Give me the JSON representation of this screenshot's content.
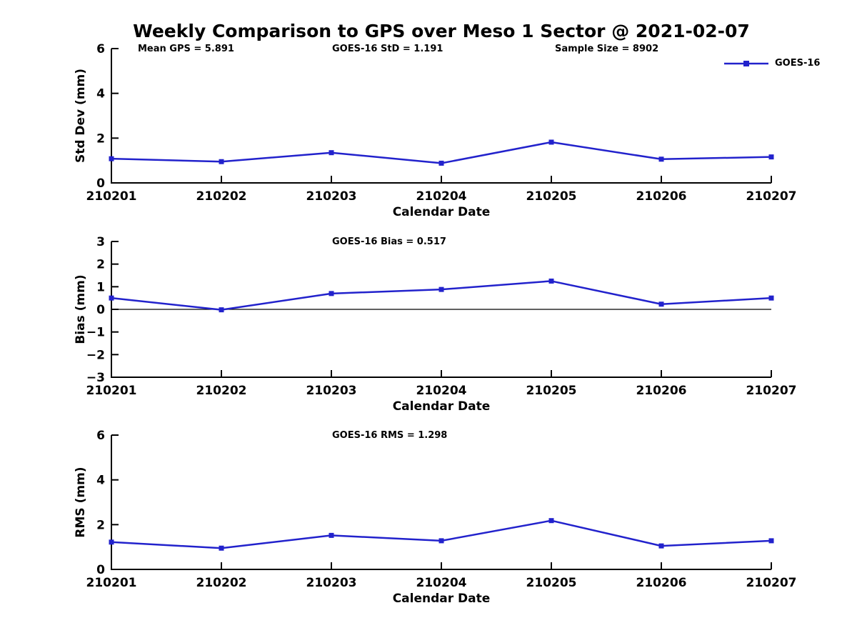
{
  "figure": {
    "title": "Weekly Comparison to GPS over Meso 1 Sector @ 2021-02-07",
    "background": "#ffffff",
    "text_color": "#000000"
  },
  "legend": {
    "label": "GOES-16",
    "color": "#2222cc",
    "marker": "square"
  },
  "chart_data": [
    {
      "type": "line",
      "categories": [
        "210201",
        "210202",
        "210203",
        "210204",
        "210205",
        "210206",
        "210207"
      ],
      "series": [
        {
          "name": "GOES-16",
          "color": "#2222cc",
          "marker": "square",
          "values": [
            1.08,
            0.95,
            1.35,
            0.88,
            1.82,
            1.06,
            1.16
          ]
        }
      ],
      "annotations": [
        "Mean GPS = 5.891",
        "GOES-16 StD = 1.191",
        "Sample Size = 8902"
      ],
      "xlabel": "Calendar Date",
      "ylabel": "Std Dev (mm)",
      "ylim": [
        0,
        6
      ],
      "yticks": [
        0,
        2,
        4,
        6
      ],
      "zero_line": false,
      "grid": false,
      "legend_position": "top-right-outside"
    },
    {
      "type": "line",
      "categories": [
        "210201",
        "210202",
        "210203",
        "210204",
        "210205",
        "210206",
        "210207"
      ],
      "series": [
        {
          "name": "GOES-16",
          "color": "#2222cc",
          "marker": "square",
          "values": [
            0.5,
            -0.02,
            0.7,
            0.88,
            1.25,
            0.23,
            0.5
          ]
        }
      ],
      "annotations": [
        "GOES-16 Bias  = 0.517"
      ],
      "xlabel": "Calendar Date",
      "ylabel": "Bias (mm)",
      "ylim": [
        -3,
        3
      ],
      "yticks": [
        -3,
        -2,
        -1,
        0,
        1,
        2,
        3
      ],
      "zero_line": true,
      "grid": false
    },
    {
      "type": "line",
      "categories": [
        "210201",
        "210202",
        "210203",
        "210204",
        "210205",
        "210206",
        "210207"
      ],
      "series": [
        {
          "name": "GOES-16",
          "color": "#2222cc",
          "marker": "square",
          "values": [
            1.22,
            0.95,
            1.52,
            1.28,
            2.18,
            1.05,
            1.28
          ]
        }
      ],
      "annotations": [
        "GOES-16 RMS = 1.298"
      ],
      "xlabel": "Calendar Date",
      "ylabel": "RMS (mm)",
      "ylim": [
        0,
        6
      ],
      "yticks": [
        0,
        2,
        4,
        6
      ],
      "zero_line": false,
      "grid": false
    }
  ]
}
